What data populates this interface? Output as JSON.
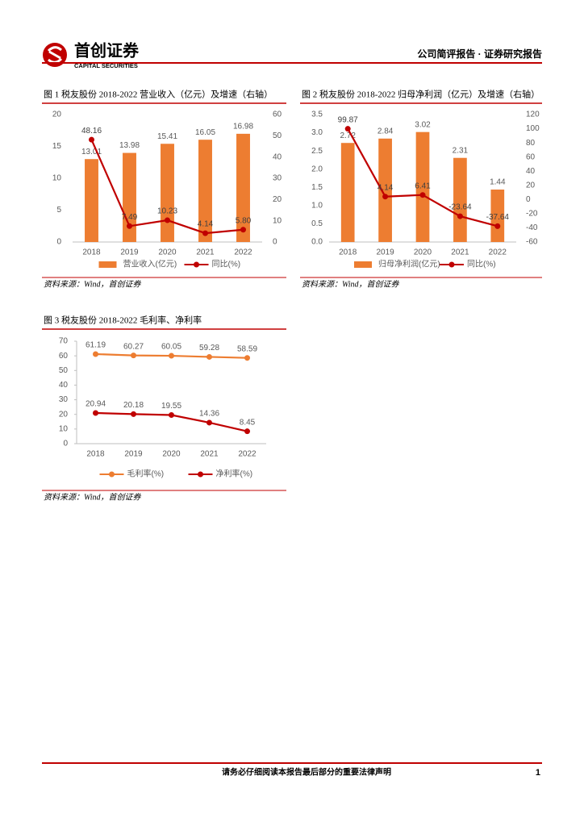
{
  "header": {
    "logo_text": "首创证券",
    "logo_sub": "CAPITAL SECURITIES",
    "title": "公司简评报告 · 证券研究报告"
  },
  "figures": [
    {
      "caption": "图 1  税友股份 2018-2022 营业收入（亿元）及增速（右轴）",
      "source": "资料来源：Wind，首创证券",
      "chart": {
        "type": "bar",
        "categories": [
          "2018",
          "2019",
          "2020",
          "2021",
          "2022"
        ],
        "series": [
          {
            "name": "营业收入(亿元)",
            "type": "bar",
            "color": "#ED7D31",
            "values": [
              13.01,
              13.98,
              15.41,
              16.05,
              16.98
            ]
          },
          {
            "name": "同比(%)",
            "type": "line",
            "axis": "y2",
            "color": "#C00000",
            "values": [
              48.16,
              7.49,
              10.23,
              4.14,
              5.8
            ],
            "value_labels": [
              "48.16",
              "7.49",
              "10.23",
              "4.14",
              "5.80"
            ]
          }
        ],
        "ylim": [
          0,
          20
        ],
        "yticks": [
          0,
          5,
          10,
          15,
          20
        ],
        "y2lim": [
          0,
          60
        ],
        "y2ticks": [
          0,
          10,
          20,
          30,
          40,
          50,
          60
        ]
      }
    },
    {
      "caption": "图 2  税友股份 2018-2022 归母净利润（亿元）及增速（右轴）",
      "source": "资料来源：Wind，首创证券",
      "chart": {
        "type": "bar",
        "categories": [
          "2018",
          "2019",
          "2020",
          "2021",
          "2022"
        ],
        "series": [
          {
            "name": "归母净利润(亿元)",
            "type": "bar",
            "color": "#ED7D31",
            "values": [
              2.72,
              2.84,
              3.02,
              2.31,
              1.44
            ]
          },
          {
            "name": "同比(%)",
            "type": "line",
            "axis": "y2",
            "color": "#C00000",
            "values": [
              99.87,
              4.14,
              6.41,
              -23.64,
              -37.64
            ]
          }
        ],
        "ylim": [
          0,
          3.5
        ],
        "yticks": [
          {
            "value": 0,
            "label": "0.0"
          },
          0.5,
          {
            "value": 1,
            "label": "1.0"
          },
          1.5,
          {
            "value": 2,
            "label": "2.0"
          },
          2.5,
          {
            "value": 3,
            "label": "3.0"
          },
          3.5
        ],
        "y2lim": [
          -60,
          120
        ],
        "y2ticks": [
          -60,
          -40,
          -20,
          0,
          20,
          40,
          60,
          80,
          100,
          120
        ]
      }
    },
    {
      "caption": "图 3  税友股份 2018-2022 毛利率、净利率",
      "source": "资料来源：Wind，首创证券",
      "chart": {
        "type": "line",
        "categories": [
          "2018",
          "2019",
          "2020",
          "2021",
          "2022"
        ],
        "series": [
          {
            "name": "毛利率(%)",
            "type": "line",
            "color": "#ED7D31",
            "values": [
              61.19,
              60.27,
              60.05,
              59.28,
              58.59
            ]
          },
          {
            "name": "净利率(%)",
            "type": "line",
            "color": "#C00000",
            "values": [
              20.94,
              20.18,
              19.55,
              14.36,
              8.45
            ]
          }
        ],
        "ylim": [
          0,
          70
        ],
        "yticks": [
          0,
          10,
          20,
          30,
          40,
          50,
          60,
          70
        ]
      }
    }
  ],
  "footer": {
    "notice": "请务必仔细阅读本报告最后部分的重要法律声明",
    "page": 1
  }
}
